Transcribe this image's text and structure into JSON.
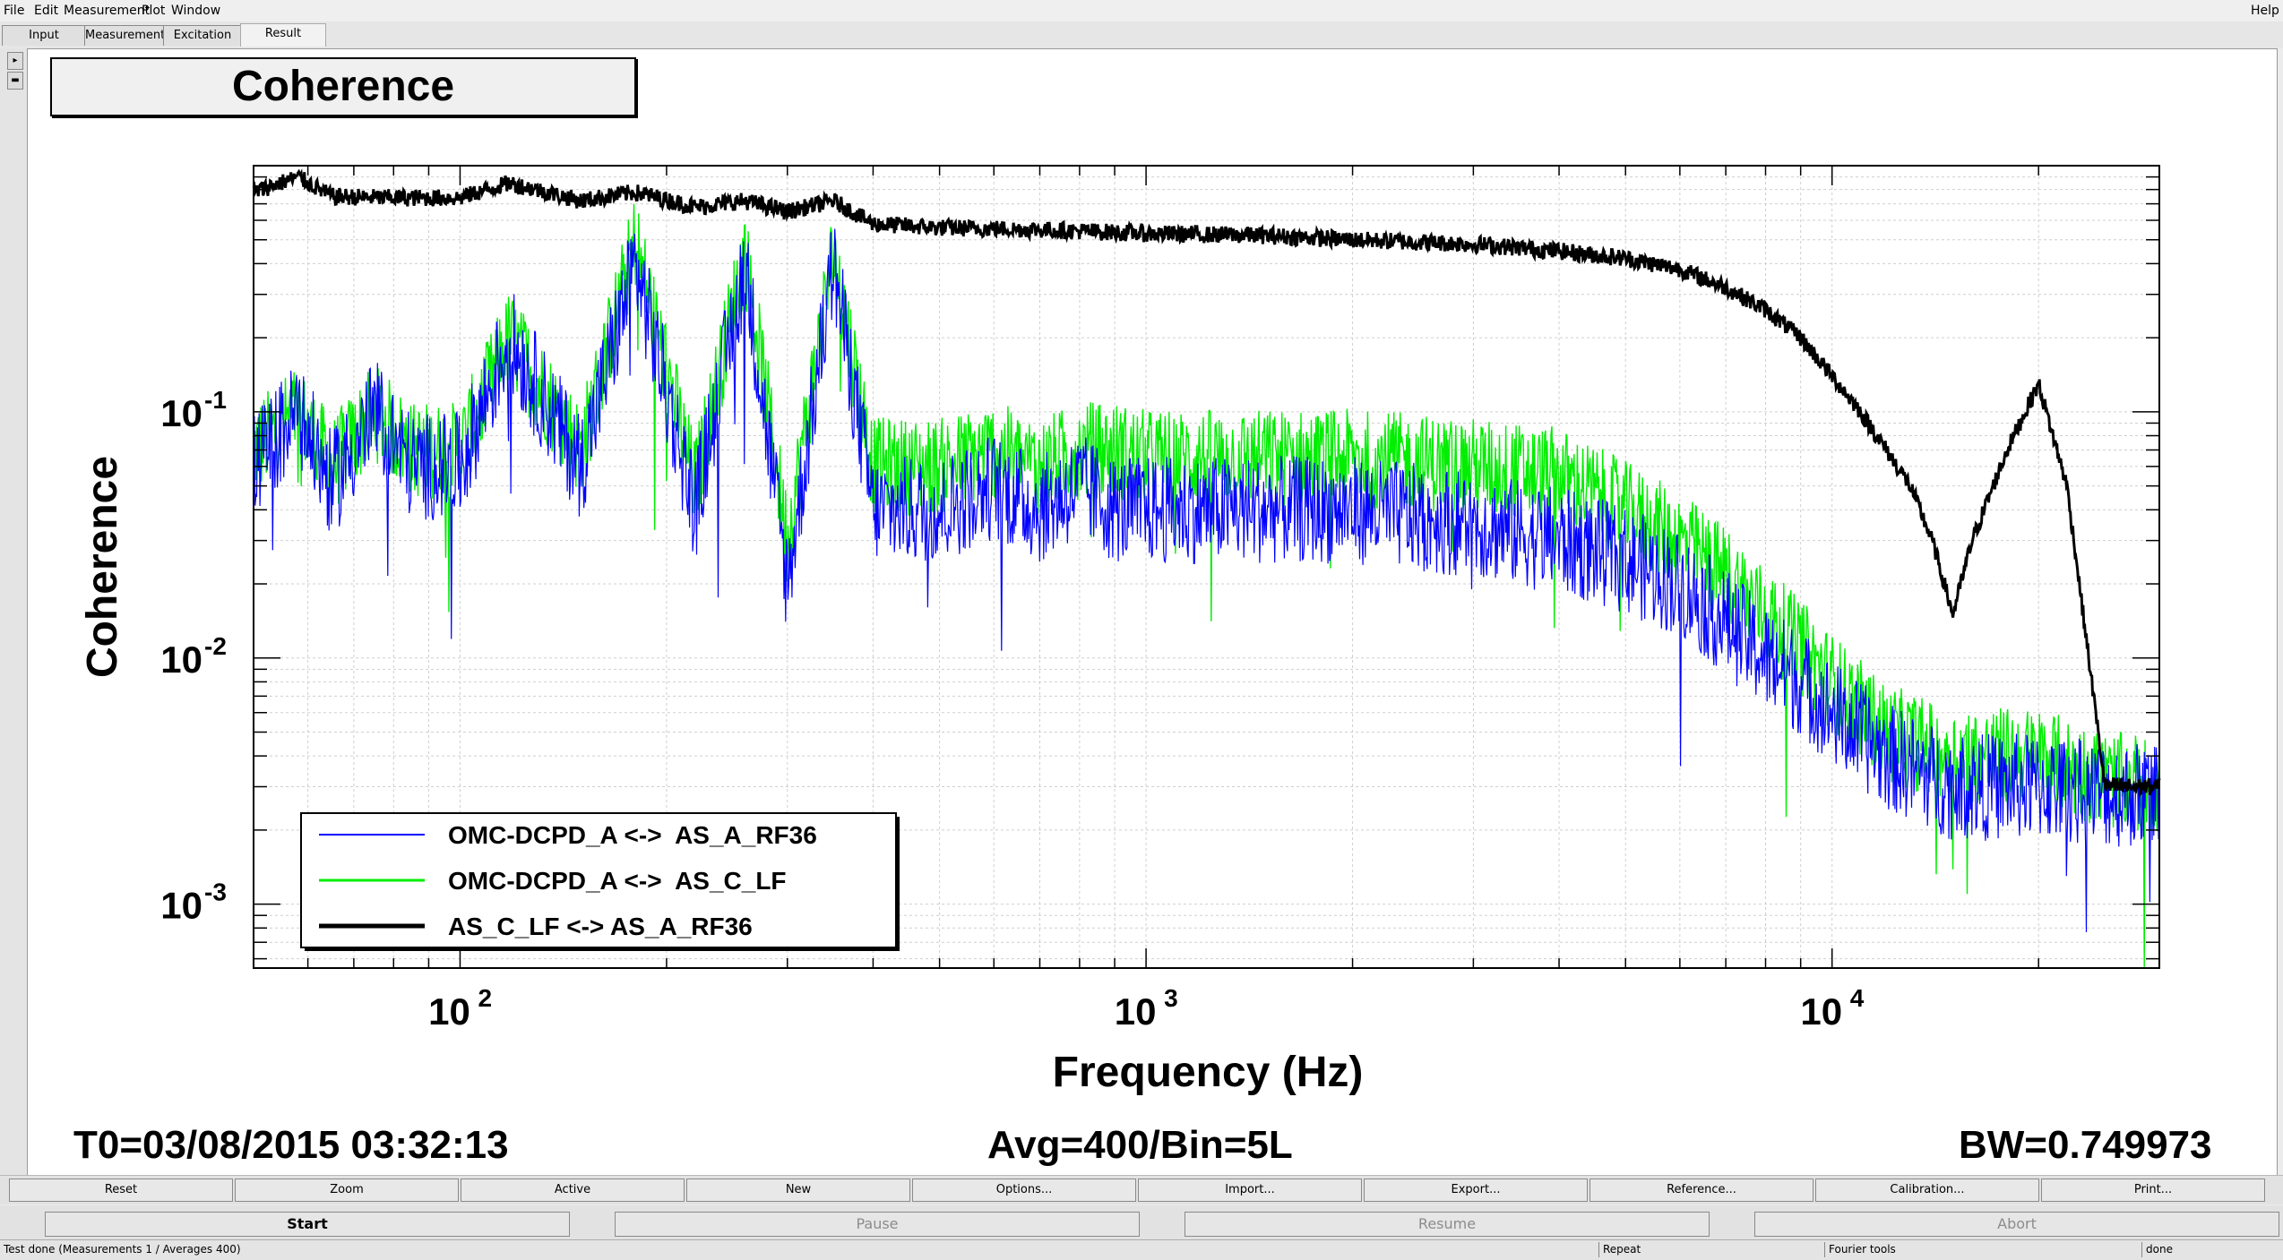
{
  "menu": {
    "left": [
      "File",
      "Edit",
      "Measurement",
      "Plot",
      "Window"
    ],
    "help": "Help"
  },
  "tabs": [
    "Input",
    "Measurement",
    "Excitation",
    "Result"
  ],
  "active_tab": "Result",
  "plot": {
    "title": "Coherence",
    "footer": {
      "t0": "T0=03/08/2015 03:32:13",
      "avg": "Avg=400/Bin=5L",
      "bw": "BW=0.749973"
    }
  },
  "chart_data": {
    "type": "line",
    "title": "Coherence",
    "xlabel": "Frequency (Hz)",
    "ylabel": "Coherence",
    "xscale": "log",
    "yscale": "log",
    "xlim": [
      50,
      30000
    ],
    "ylim": [
      0.00055,
      1
    ],
    "x_ticks": [
      {
        "value": 100,
        "label_base": "10",
        "label_exp": "2"
      },
      {
        "value": 1000,
        "label_base": "10",
        "label_exp": "3"
      },
      {
        "value": 10000,
        "label_base": "10",
        "label_exp": "4"
      }
    ],
    "y_ticks": [
      {
        "value": 0.1,
        "label_base": "10",
        "label_exp": "-1"
      },
      {
        "value": 0.01,
        "label_base": "10",
        "label_exp": "-2"
      },
      {
        "value": 0.001,
        "label_base": "10",
        "label_exp": "-3"
      }
    ],
    "grid": true,
    "legend_position": "bottom-left",
    "series": [
      {
        "name": "OMC-DCPD_A <->  AS_A_RF36",
        "color": "#0000ff",
        "x": [
          50,
          58,
          65,
          75,
          85,
          100,
          118,
          150,
          180,
          220,
          260,
          300,
          350,
          400,
          500,
          600,
          700,
          800,
          900,
          1000,
          1500,
          2000,
          3000,
          4000,
          5000,
          6000,
          7000,
          8000,
          9000,
          10000,
          12000,
          15000,
          20000,
          25000,
          30000
        ],
        "y": [
          0.06,
          0.1,
          0.05,
          0.1,
          0.06,
          0.06,
          0.2,
          0.06,
          0.4,
          0.04,
          0.4,
          0.02,
          0.4,
          0.04,
          0.04,
          0.05,
          0.04,
          0.05,
          0.04,
          0.04,
          0.04,
          0.04,
          0.035,
          0.03,
          0.025,
          0.02,
          0.014,
          0.01,
          0.008,
          0.006,
          0.004,
          0.003,
          0.003,
          0.0028,
          0.0028
        ]
      },
      {
        "name": "OMC-DCPD_A <->  AS_C_LF",
        "color": "#00ee00",
        "x": [
          50,
          58,
          65,
          75,
          85,
          100,
          118,
          150,
          180,
          220,
          260,
          300,
          350,
          400,
          500,
          600,
          700,
          800,
          900,
          1000,
          1500,
          2000,
          3000,
          4000,
          5000,
          6000,
          7000,
          8000,
          9000,
          10000,
          12000,
          15000,
          20000,
          25000,
          30000
        ],
        "y": [
          0.07,
          0.1,
          0.06,
          0.1,
          0.07,
          0.07,
          0.2,
          0.07,
          0.5,
          0.05,
          0.45,
          0.03,
          0.45,
          0.06,
          0.06,
          0.07,
          0.06,
          0.07,
          0.07,
          0.065,
          0.065,
          0.065,
          0.06,
          0.055,
          0.04,
          0.03,
          0.022,
          0.015,
          0.011,
          0.008,
          0.005,
          0.004,
          0.004,
          0.0032,
          0.003
        ]
      },
      {
        "name": "AS_C_LF <-> AS_A_RF36",
        "color": "#000000",
        "x": [
          50,
          58,
          65,
          80,
          100,
          118,
          150,
          180,
          220,
          260,
          300,
          350,
          400,
          500,
          700,
          1000,
          1500,
          2000,
          3000,
          4000,
          5000,
          6000,
          7000,
          8000,
          9000,
          10000,
          11000,
          12000,
          13000,
          14000,
          15000,
          16000,
          18000,
          20000,
          22000,
          25000,
          30000
        ],
        "y": [
          0.78,
          0.9,
          0.75,
          0.74,
          0.74,
          0.85,
          0.72,
          0.78,
          0.68,
          0.72,
          0.65,
          0.72,
          0.58,
          0.56,
          0.55,
          0.53,
          0.52,
          0.5,
          0.48,
          0.45,
          0.42,
          0.38,
          0.32,
          0.26,
          0.2,
          0.14,
          0.1,
          0.07,
          0.05,
          0.03,
          0.015,
          0.03,
          0.07,
          0.13,
          0.05,
          0.003,
          0.003
        ]
      }
    ]
  },
  "toolbar": [
    "Reset",
    "Zoom",
    "Active",
    "New",
    "Options...",
    "Import...",
    "Export...",
    "Reference...",
    "Calibration...",
    "Print..."
  ],
  "controls": {
    "start": "Start",
    "pause": "Pause",
    "resume": "Resume",
    "abort": "Abort"
  },
  "status": {
    "message": "Test done (Measurements 1 / Averages 400)",
    "repeat": "Repeat",
    "fourier": "Fourier tools",
    "done": "done"
  }
}
